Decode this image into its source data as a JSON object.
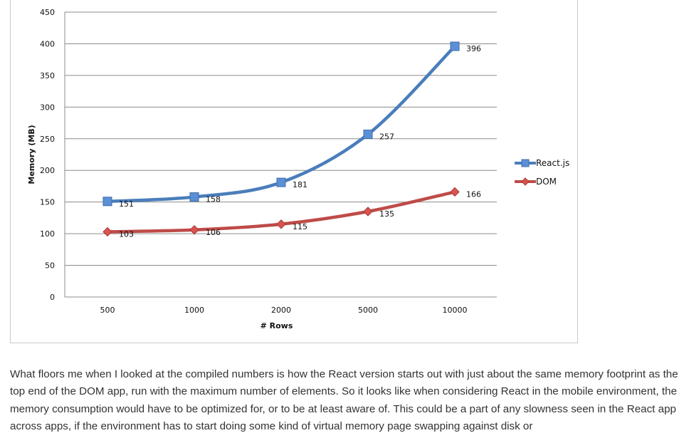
{
  "chart_data": {
    "type": "line",
    "title": "",
    "xlabel": "# Rows",
    "ylabel": "Memory (MB)",
    "categories": [
      "500",
      "1000",
      "2000",
      "5000",
      "10000"
    ],
    "ylim": [
      0,
      450
    ],
    "yticks": [
      0,
      50,
      100,
      150,
      200,
      250,
      300,
      350,
      400,
      450
    ],
    "grid": true,
    "legend_position": "right",
    "series": [
      {
        "name": "React.js",
        "values": [
          151,
          158,
          181,
          257,
          396
        ],
        "color": "#4a7ebb",
        "marker": "square",
        "marker_color": "#5b8fd6"
      },
      {
        "name": "DOM",
        "values": [
          103,
          106,
          115,
          135,
          166
        ],
        "color": "#be4b48",
        "marker": "diamond",
        "marker_color": "#d9534f"
      }
    ]
  },
  "article": {
    "paragraph": "What floors me when I looked at the compiled numbers is how the React version starts out with just about the same memory footprint as the top end of the DOM app, run with the maximum number of elements. So it looks like when considering React in the mobile environment, the memory consumption would have to be optimized for, or to be at least aware of. This could be a part of any slowness seen in the React app across apps, if the environment has to start doing some kind of virtual memory page swapping against disk or"
  }
}
